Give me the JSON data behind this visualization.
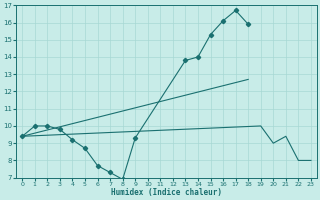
{
  "xlabel": "Humidex (Indice chaleur)",
  "bg_color": "#c8ece8",
  "line_color": "#1a7070",
  "grid_color": "#a8d8d4",
  "xlim": [
    -0.5,
    23.5
  ],
  "ylim": [
    7,
    17
  ],
  "yticks": [
    7,
    8,
    9,
    10,
    11,
    12,
    13,
    14,
    15,
    16,
    17
  ],
  "xticks": [
    0,
    1,
    2,
    3,
    4,
    5,
    6,
    7,
    8,
    9,
    10,
    11,
    12,
    13,
    14,
    15,
    16,
    17,
    18,
    19,
    20,
    21,
    22,
    23
  ],
  "line1_x": [
    0,
    1,
    2,
    3,
    4,
    5,
    6,
    7,
    8,
    9,
    13,
    14,
    15,
    16,
    17,
    18
  ],
  "line1_y": [
    9.4,
    10.0,
    10.0,
    9.8,
    9.2,
    8.7,
    7.7,
    7.3,
    6.9,
    9.3,
    13.8,
    14.0,
    15.3,
    16.1,
    16.7,
    15.9
  ],
  "line2_x": [
    0,
    18
  ],
  "line2_y": [
    9.4,
    12.7
  ],
  "line3_x": [
    0,
    19,
    20,
    21,
    22,
    23
  ],
  "line3_y": [
    9.4,
    10.0,
    9.0,
    9.4,
    8.0,
    8.0
  ]
}
